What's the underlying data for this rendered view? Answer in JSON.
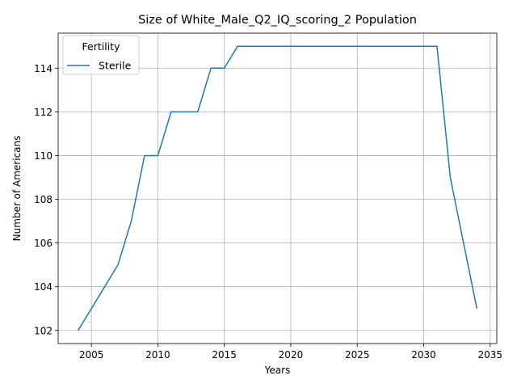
{
  "chart_data": {
    "type": "line",
    "title": "Size of White_Male_Q2_IQ_scoring_2 Population",
    "xlabel": "Years",
    "ylabel": "Number of Americans",
    "xlim": [
      2002.5,
      2035.5
    ],
    "ylim": [
      101.4,
      115.6
    ],
    "xticks": [
      2005,
      2010,
      2015,
      2020,
      2025,
      2030,
      2035
    ],
    "yticks": [
      102,
      104,
      106,
      108,
      110,
      112,
      114
    ],
    "grid": true,
    "legend": {
      "title": "Fertility",
      "placement": "top-left"
    },
    "series": [
      {
        "name": "Sterile",
        "color": "#1f77b4",
        "x": [
          2004,
          2005,
          2006,
          2007,
          2008,
          2009,
          2010,
          2011,
          2012,
          2013,
          2014,
          2015,
          2016,
          2017,
          2018,
          2019,
          2020,
          2021,
          2022,
          2023,
          2024,
          2025,
          2026,
          2027,
          2028,
          2029,
          2030,
          2031,
          2032,
          2033,
          2034
        ],
        "y": [
          102,
          103,
          104,
          105,
          107,
          110,
          110,
          112,
          112,
          112,
          114,
          114,
          115,
          115,
          115,
          115,
          115,
          115,
          115,
          115,
          115,
          115,
          115,
          115,
          115,
          115,
          115,
          115,
          109,
          106,
          103
        ]
      }
    ]
  }
}
